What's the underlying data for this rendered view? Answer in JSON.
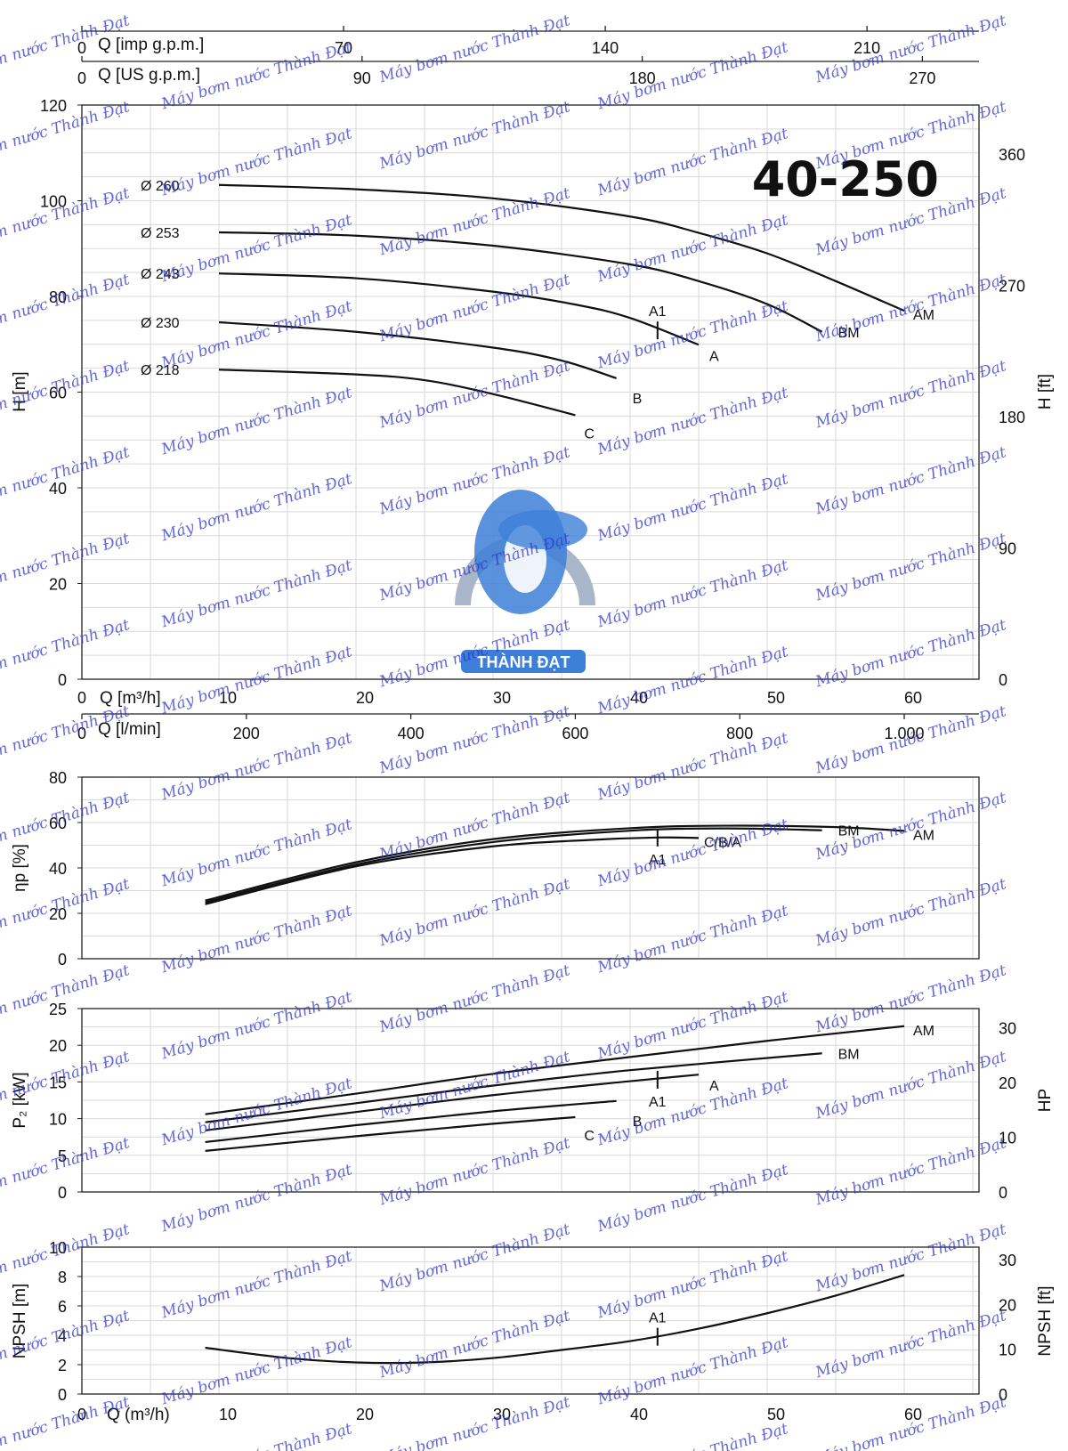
{
  "colors": {
    "curve": "#111111",
    "grid": "#d9d9d9",
    "watermark": "#2f35c8",
    "logo_blue": "#3d7fd8",
    "logo_gear": "#a9b6c9"
  },
  "watermark": {
    "text": "Máy bơm nước Thành Đạt"
  },
  "logo": {
    "text": "THÀNH ĐẠT"
  },
  "chart_data": [
    {
      "type": "line",
      "title": "40-250",
      "xlabel": "Q [m³/h]",
      "ylabel": "H [m]",
      "ylabel_right": "H [ft]",
      "xlim": [
        0,
        65
      ],
      "ylim": [
        0,
        120
      ],
      "x_ticks": [
        "0",
        "10",
        "20",
        "30",
        "40",
        "50",
        "60"
      ],
      "y_ticks": [
        "0",
        "20",
        "40",
        "60",
        "80",
        "100",
        "120"
      ],
      "y_right_ticks": [
        "0",
        "90",
        "180",
        "270",
        "360"
      ],
      "top_axes": [
        {
          "label": "Q [imp g.p.m.]",
          "ticks": [
            "0",
            "70",
            "140",
            "210"
          ]
        },
        {
          "label": "Q [US g.p.m.]",
          "ticks": [
            "0",
            "90",
            "180",
            "270"
          ]
        }
      ],
      "bottom_axis2": {
        "label": "Q [l/min]",
        "ticks": [
          "0",
          "200",
          "400",
          "600",
          "800",
          "1.000"
        ]
      },
      "grid": true,
      "series": [
        {
          "name": "AM",
          "label": "Ø 260",
          "x": [
            10,
            20,
            30,
            40,
            45,
            50,
            55,
            60
          ],
          "y": [
            103.3,
            102.4,
            100.5,
            96.7,
            93.3,
            89.0,
            83.2,
            77.0
          ]
        },
        {
          "name": "BM",
          "label": "Ø 253",
          "x": [
            10,
            20,
            30,
            40,
            45,
            50,
            54
          ],
          "y": [
            93.4,
            92.7,
            90.6,
            86.7,
            83.2,
            78.4,
            72.6
          ]
        },
        {
          "name": "A",
          "label": "Ø 243",
          "x": [
            10,
            20,
            30,
            36,
            40,
            45
          ],
          "y": [
            84.8,
            83.8,
            81.0,
            78.3,
            75.5,
            69.9
          ]
        },
        {
          "name": "B",
          "label": "Ø 230",
          "x": [
            10,
            20,
            30,
            35,
            39
          ],
          "y": [
            74.6,
            72.6,
            69.3,
            66.6,
            62.9
          ]
        },
        {
          "name": "C",
          "label": "Ø 218",
          "x": [
            10,
            20,
            25,
            30,
            36
          ],
          "y": [
            64.7,
            63.7,
            62.5,
            59.6,
            55.2
          ]
        }
      ],
      "points": [
        {
          "label": "A1",
          "x": 42,
          "y": 72.9
        }
      ]
    },
    {
      "type": "line",
      "ylabel": "ηp [%]",
      "xlim": [
        0,
        65
      ],
      "ylim": [
        0,
        80
      ],
      "y_ticks": [
        "0",
        "20",
        "40",
        "60",
        "80"
      ],
      "grid": true,
      "series": [
        {
          "name": "AM",
          "x": [
            9,
            20,
            30,
            40,
            47,
            55,
            60
          ],
          "y": [
            25.6,
            42.5,
            52.7,
            57.5,
            58.6,
            58.0,
            56.3
          ]
        },
        {
          "name": "BM",
          "x": [
            9,
            20,
            30,
            40,
            47,
            54
          ],
          "y": [
            24.8,
            41.5,
            51.4,
            56.4,
            57.4,
            56.6
          ]
        },
        {
          "name": "C/B/A",
          "x": [
            9,
            20,
            30,
            37,
            42,
            45
          ],
          "y": [
            24.0,
            40.7,
            49.5,
            52.3,
            53.4,
            53.2
          ]
        }
      ],
      "points": [
        {
          "label": "A1",
          "x": 42,
          "y": 53.4
        }
      ]
    },
    {
      "type": "line",
      "ylabel": "P₂ [kW]",
      "ylabel_right": "HP",
      "xlim": [
        0,
        65
      ],
      "ylim": [
        0,
        25
      ],
      "y_ticks": [
        "0",
        "5",
        "10",
        "15",
        "20",
        "25"
      ],
      "y_right_ticks": [
        "0",
        "10",
        "20",
        "30"
      ],
      "grid": true,
      "series": [
        {
          "name": "AM",
          "x": [
            9,
            20,
            30,
            40,
            50,
            60
          ],
          "y": [
            10.6,
            13.4,
            16.1,
            18.4,
            20.6,
            22.6
          ]
        },
        {
          "name": "BM",
          "x": [
            9,
            20,
            30,
            40,
            54
          ],
          "y": [
            9.5,
            12.1,
            14.5,
            16.6,
            18.9
          ]
        },
        {
          "name": "A",
          "x": [
            9,
            20,
            30,
            40,
            45
          ],
          "y": [
            8.4,
            10.9,
            13.2,
            15.1,
            16.0
          ]
        },
        {
          "name": "B",
          "x": [
            9,
            20,
            30,
            39
          ],
          "y": [
            6.8,
            9.1,
            11.0,
            12.4
          ]
        },
        {
          "name": "C",
          "x": [
            9,
            20,
            30,
            36
          ],
          "y": [
            5.6,
            7.6,
            9.3,
            10.2
          ]
        }
      ],
      "points": [
        {
          "label": "A1",
          "x": 42,
          "y": 15.3
        }
      ]
    },
    {
      "type": "line",
      "xlabel": "Q (m³/h)",
      "ylabel": "NPSH [m]",
      "ylabel_right": "NPSH [ft]",
      "xlim": [
        0,
        65
      ],
      "ylim": [
        0,
        10
      ],
      "x_ticks": [
        "0",
        "10",
        "20",
        "30",
        "40",
        "50",
        "60"
      ],
      "y_ticks": [
        "0",
        "2",
        "4",
        "6",
        "8",
        "10"
      ],
      "y_right_ticks": [
        "0",
        "10",
        "20",
        "30"
      ],
      "grid": true,
      "series": [
        {
          "name": "NPSH",
          "x": [
            9,
            15,
            20,
            25,
            30,
            35,
            40,
            45,
            50,
            55,
            60
          ],
          "y": [
            3.15,
            2.45,
            2.15,
            2.15,
            2.45,
            3.0,
            3.6,
            4.45,
            5.5,
            6.7,
            8.1
          ]
        }
      ],
      "points": [
        {
          "label": "A1",
          "x": 42,
          "y": 3.9
        }
      ]
    }
  ]
}
